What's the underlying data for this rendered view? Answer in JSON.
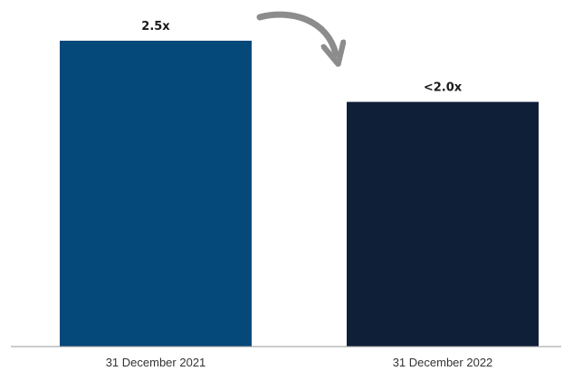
{
  "chart_data": {
    "type": "bar",
    "categories": [
      "31 December 2021",
      "31 December 2022"
    ],
    "values": [
      2.5,
      2.0
    ],
    "data_labels": [
      "2.5x",
      "<2.0x"
    ],
    "bar_colors": [
      "#05487a",
      "#0f1f38"
    ],
    "ylim": [
      0,
      2.5
    ],
    "grid": false,
    "axis_color": "#999999",
    "annotations": [
      {
        "type": "curved-arrow",
        "from": "31 December 2021",
        "to": "31 December 2022",
        "color": "#8c8c8c"
      }
    ]
  }
}
